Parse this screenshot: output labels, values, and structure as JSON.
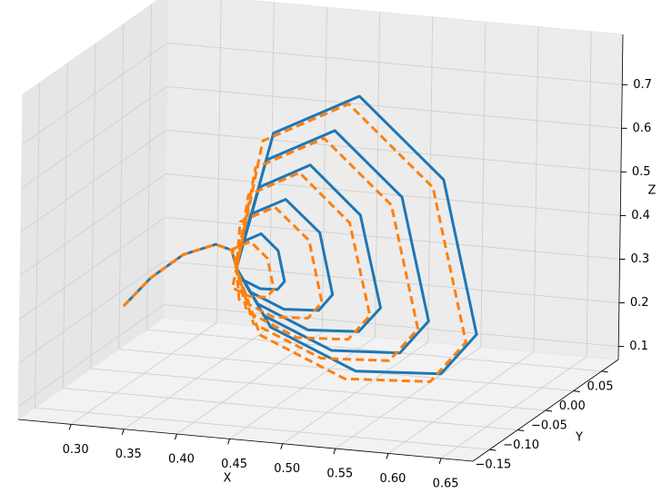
{
  "chart_data": {
    "type": "line3d",
    "xlabel": "X",
    "ylabel": "Y",
    "zlabel": "Z",
    "xlim": [
      0.25,
      0.68
    ],
    "ylim": [
      -0.18,
      0.08
    ],
    "zlim": [
      0.07,
      0.815
    ],
    "xticks": [
      {
        "value": 0.3,
        "label": "0.30"
      },
      0.35,
      {
        "value": 0.4,
        "label": "0.40"
      },
      0.45,
      {
        "value": 0.5,
        "label": "0.50"
      },
      0.55,
      {
        "value": 0.6,
        "label": "0.60"
      },
      0.65
    ],
    "yticks": [
      {
        "value": -0.15,
        "label": "−0.15"
      },
      {
        "value": -0.1,
        "label": "−0.10"
      },
      {
        "value": -0.05,
        "label": "−0.05"
      },
      {
        "value": 0,
        "label": "0.00"
      },
      0.05
    ],
    "zticks": [
      0.1,
      0.2,
      0.3,
      0.4,
      0.5,
      0.6,
      0.7
    ],
    "grid": true,
    "series": [
      {
        "color": "#1f77b4",
        "linestyle": "solid",
        "x": [
          0.28,
          0.3,
          0.32,
          0.34,
          0.35,
          0.36,
          0.368,
          0.388,
          0.408,
          0.416,
          0.408,
          0.388,
          0.368,
          0.36,
          0.376,
          0.416,
          0.456,
          0.472,
          0.456,
          0.416,
          0.376,
          0.36,
          0.385,
          0.444,
          0.503,
          0.528,
          0.503,
          0.444,
          0.385,
          0.36,
          0.393,
          0.472,
          0.551,
          0.584,
          0.551,
          0.472,
          0.393,
          0.36,
          0.401,
          0.5,
          0.599,
          0.64,
          0.599,
          0.5,
          0.401,
          0.36
        ],
        "y": [
          -0.05,
          -0.04,
          -0.02,
          0,
          0.01,
          0,
          -0.003,
          -0.01,
          -0.017,
          -0.02,
          -0.017,
          -0.01,
          -0.003,
          0,
          -0.006,
          -0.02,
          -0.034,
          -0.04,
          -0.034,
          -0.02,
          -0.006,
          0,
          -0.009,
          -0.03,
          -0.051,
          -0.06,
          -0.051,
          -0.03,
          -0.009,
          0,
          -0.012,
          -0.04,
          -0.068,
          -0.08,
          -0.068,
          -0.04,
          -0.012,
          0,
          -0.015,
          -0.05,
          -0.085,
          -0.1,
          -0.085,
          -0.05,
          -0.015,
          0
        ],
        "z": [
          0.22,
          0.28,
          0.32,
          0.33,
          0.31,
          0.28,
          0.346,
          0.374,
          0.346,
          0.28,
          0.257,
          0.248,
          0.257,
          0.28,
          0.413,
          0.468,
          0.413,
          0.28,
          0.235,
          0.216,
          0.235,
          0.28,
          0.479,
          0.562,
          0.479,
          0.28,
          0.212,
          0.184,
          0.212,
          0.28,
          0.546,
          0.656,
          0.546,
          0.28,
          0.189,
          0.152,
          0.189,
          0.28,
          0.612,
          0.75,
          0.612,
          0.28,
          0.167,
          0.12,
          0.167,
          0.28
        ]
      },
      {
        "color": "#ff7f0e",
        "linestyle": "dashed",
        "x": [
          0.28,
          0.3,
          0.32,
          0.34,
          0.35,
          0.36,
          0.358,
          0.378,
          0.398,
          0.406,
          0.398,
          0.378,
          0.358,
          0.36,
          0.366,
          0.406,
          0.446,
          0.462,
          0.446,
          0.406,
          0.366,
          0.36,
          0.375,
          0.434,
          0.493,
          0.518,
          0.493,
          0.434,
          0.375,
          0.36,
          0.383,
          0.462,
          0.541,
          0.574,
          0.541,
          0.462,
          0.383,
          0.36,
          0.391,
          0.49,
          0.589,
          0.63,
          0.589,
          0.49,
          0.391,
          0.36
        ],
        "y": [
          -0.05,
          -0.04,
          -0.02,
          0,
          0.01,
          0,
          -0.003,
          -0.01,
          -0.017,
          -0.02,
          -0.017,
          -0.01,
          -0.003,
          0,
          -0.006,
          -0.02,
          -0.034,
          -0.04,
          -0.034,
          -0.02,
          -0.006,
          0,
          -0.009,
          -0.03,
          -0.051,
          -0.06,
          -0.051,
          -0.03,
          -0.009,
          0,
          -0.012,
          -0.04,
          -0.068,
          -0.08,
          -0.068,
          -0.04,
          -0.012,
          0,
          -0.015,
          -0.05,
          -0.085,
          -0.1,
          -0.085,
          -0.05,
          -0.015,
          0
        ],
        "z": [
          0.22,
          0.28,
          0.32,
          0.33,
          0.31,
          0.28,
          0.326,
          0.354,
          0.326,
          0.26,
          0.237,
          0.228,
          0.237,
          0.28,
          0.393,
          0.448,
          0.393,
          0.26,
          0.215,
          0.196,
          0.215,
          0.28,
          0.459,
          0.542,
          0.459,
          0.26,
          0.192,
          0.164,
          0.192,
          0.28,
          0.526,
          0.636,
          0.526,
          0.26,
          0.169,
          0.132,
          0.169,
          0.28,
          0.592,
          0.73,
          0.592,
          0.26,
          0.147,
          0.1,
          0.147,
          0.28
        ]
      }
    ]
  }
}
